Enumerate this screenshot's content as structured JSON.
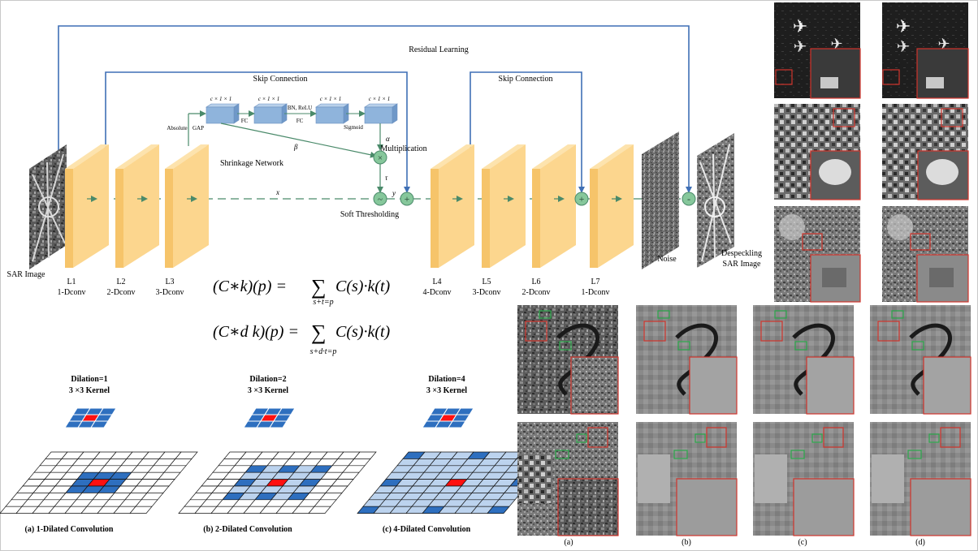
{
  "network": {
    "residual_label": "Residual Learning",
    "skip1_label": "Skip Connection",
    "skip2_label": "Skip Connection",
    "input_label": "SAR Image",
    "output_label_1": "Despeckling",
    "output_label_2": "SAR Image",
    "noise_label": "Noise",
    "shrinkage_label": "Shrinkage Network",
    "multiplication_label": "Multiplication",
    "soft_threshold_label": "Soft Thresholding",
    "absolute_label": "Absolute",
    "gap_label": "GAP",
    "fc1_label": "FC",
    "bn_relu_label": "BN, ReLU",
    "fc2_label": "FC",
    "sigmoid_label": "Sigmoid",
    "fc_dims_label": "c × 1 × 1",
    "alpha": "α",
    "beta": "β",
    "tau": "τ",
    "x_var": "x",
    "y_var": "y",
    "layers": [
      {
        "name": "L1",
        "type": "1-Dconv"
      },
      {
        "name": "L2",
        "type": "2-Dconv"
      },
      {
        "name": "L3",
        "type": "3-Dconv"
      },
      {
        "name": "L4",
        "type": "4-Dconv"
      },
      {
        "name": "L5",
        "type": "3-Dconv"
      },
      {
        "name": "L6",
        "type": "2-Dconv"
      },
      {
        "name": "L7",
        "type": "1-Dconv"
      }
    ]
  },
  "equations": {
    "eq1_lhs": "(C∗k)(p) =",
    "eq1_rhs": "C(s)·k(t)",
    "eq1_sub": "s+t=p",
    "eq2_lhs": "(C∗d k)(p) =",
    "eq2_rhs": "C(s)·k(t)",
    "eq2_sub": "s+d·t=p",
    "sum": "∑"
  },
  "dilations": [
    {
      "title": "Dilation=1",
      "kernel": "3 ×3 Kernel",
      "caption": "(a) 1-Dilated Convolution"
    },
    {
      "title": "Dilation=2",
      "kernel": "3 ×3 Kernel",
      "caption": "(b) 2-Dilated Convolution"
    },
    {
      "title": "Dilation=4",
      "kernel": "3 ×3 Kernel",
      "caption": "(c) 4-Dilated Convolution"
    }
  ],
  "result_captions": [
    "(a)",
    "(b)",
    "(c)",
    "(d)"
  ],
  "colors": {
    "layer_face": "#fcd68e",
    "layer_side": "#f6c46a",
    "fc_block": "#8fb4dc",
    "flow_blue": "#3f6fb5",
    "node_green": "#86c79b",
    "kernel_blue": "#2e6fbf",
    "kernel_light": "#bcd3ee",
    "kernel_red": "#ff1010",
    "zoom_red": "#d0342c",
    "zoom_green": "#2aa84a"
  }
}
